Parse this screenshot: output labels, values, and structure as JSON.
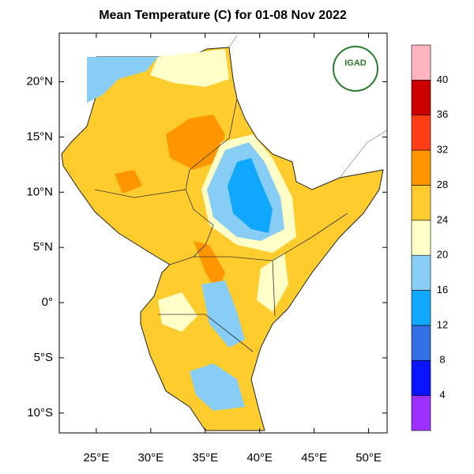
{
  "chart_data": {
    "type": "filled-contour-map",
    "title": "Mean Temperature (C) for 01-08 Nov 2022",
    "logo_text": "IGAD",
    "xlim": [
      21.6,
      51.7
    ],
    "ylim": [
      -11.8,
      24.4
    ],
    "xticks": [
      {
        "value": 25,
        "label": "25°E"
      },
      {
        "value": 30,
        "label": "30°E"
      },
      {
        "value": 35,
        "label": "35°E"
      },
      {
        "value": 40,
        "label": "40°E"
      },
      {
        "value": 45,
        "label": "45°E"
      },
      {
        "value": 50,
        "label": "50°E"
      }
    ],
    "yticks": [
      {
        "value": 20,
        "label": "20°N"
      },
      {
        "value": 15,
        "label": "15°N"
      },
      {
        "value": 10,
        "label": "10°N"
      },
      {
        "value": 5,
        "label": "5°N"
      },
      {
        "value": 0,
        "label": "0°"
      },
      {
        "value": -5,
        "label": "5°S"
      },
      {
        "value": -10,
        "label": "10°S"
      }
    ],
    "colorbar": {
      "levels": [
        4,
        8,
        12,
        16,
        20,
        24,
        28,
        32,
        36,
        40
      ],
      "colors": [
        "#9b30ff",
        "#0a14ff",
        "#3370e8",
        "#10a8ff",
        "#87cdf5",
        "#ffffc8",
        "#ffcc2e",
        "#ff9600",
        "#ff3c14",
        "#cc0000",
        "#ffb4c0"
      ]
    }
  }
}
